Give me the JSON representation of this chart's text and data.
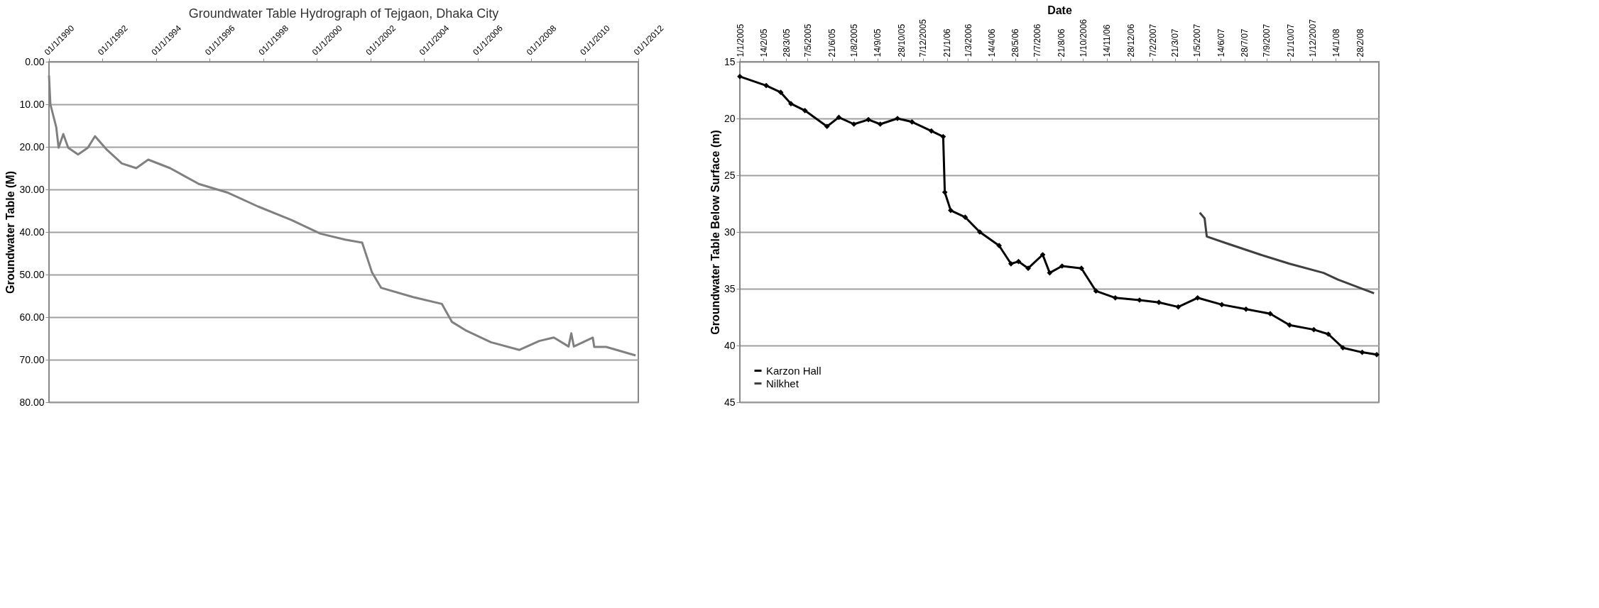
{
  "chart_data": [
    {
      "type": "line",
      "title": "Groundwater Table Hydrograph of Tejgaon, Dhaka City",
      "ylabel": "Groundwater Table (M)",
      "xlim": [
        "1990-01-01",
        "2012-01-01"
      ],
      "xticks": [
        {
          "value": "1990-01-01",
          "label": "01/1/1990"
        },
        {
          "value": "1992-01-01",
          "label": "01/1/1992"
        },
        {
          "value": "1994-01-01",
          "label": "01/1/1994"
        },
        {
          "value": "1996-01-01",
          "label": "01/1/1996"
        },
        {
          "value": "1998-01-01",
          "label": "01/1/1998"
        },
        {
          "value": "2000-01-01",
          "label": "01/1/2000"
        },
        {
          "value": "2002-01-01",
          "label": "01/1/2002"
        },
        {
          "value": "2004-01-01",
          "label": "01/1/2004"
        },
        {
          "value": "2006-01-01",
          "label": "01/1/2006"
        },
        {
          "value": "2008-01-01",
          "label": "01/1/2008"
        },
        {
          "value": "2010-01-01",
          "label": "01/1/2010"
        },
        {
          "value": "2012-01-01",
          "label": "01/1/2012"
        }
      ],
      "ylim": [
        80,
        0
      ],
      "yticks": [
        {
          "value": 0,
          "label": "0.00"
        },
        {
          "value": 10,
          "label": "10.00"
        },
        {
          "value": 20,
          "label": "20.00"
        },
        {
          "value": 30,
          "label": "30.00"
        },
        {
          "value": 40,
          "label": "40.00"
        },
        {
          "value": 50,
          "label": "50.00"
        },
        {
          "value": 60,
          "label": "60.00"
        },
        {
          "value": 70,
          "label": "70.00"
        },
        {
          "value": 80,
          "label": "80.00"
        }
      ],
      "grid": "y",
      "series": [
        {
          "color": "#808080",
          "x": [
            "1990-01-01",
            "1990-01-20",
            "1990-04-10",
            "1990-05-12",
            "1990-07-15",
            "1990-09-20",
            "1991-02-01",
            "1991-06-15",
            "1991-09-20",
            "1992-03-01",
            "1992-09-20",
            "1993-04-05",
            "1993-09-15",
            "1994-07-10",
            "1995-08-05",
            "1996-09-10",
            "1997-10-20",
            "1999-01-20",
            "2000-02-20",
            "2001-01-20",
            "2001-09-10",
            "2002-01-20",
            "2002-05-25",
            "2003-08-05",
            "2004-09-01",
            "2005-01-15",
            "2005-08-01",
            "2006-07-01",
            "2007-07-25",
            "2008-04-20",
            "2008-11-05",
            "2009-05-25",
            "2009-07-01",
            "2009-08-05",
            "2010-04-20",
            "2010-05-10",
            "2010-10-20",
            "2011-11-25"
          ],
          "values": [
            3.2,
            10,
            15.4,
            20.2,
            17,
            20.2,
            21.8,
            20.2,
            17.5,
            20.7,
            23.9,
            25,
            23,
            25,
            28.7,
            30.8,
            34,
            37.2,
            40.4,
            41.8,
            42.5,
            49.4,
            53.1,
            55.3,
            56.9,
            61.1,
            63.2,
            65.9,
            67.7,
            65.6,
            64.8,
            66.9,
            63.8,
            66.9,
            64.8,
            67,
            67,
            69
          ]
        }
      ]
    },
    {
      "type": "line",
      "xlabel": "Date",
      "ylabel": "Groundwater Table Below Surface (m)",
      "xlim": [
        "2005-01-01",
        "2008-04-03"
      ],
      "xticks": [
        {
          "value": "2005-01-01",
          "label": "1/1/2005"
        },
        {
          "value": "2005-02-14",
          "label": "14/2/05"
        },
        {
          "value": "2005-03-28",
          "label": "28/3/05"
        },
        {
          "value": "2005-05-07",
          "label": "7/5/2005"
        },
        {
          "value": "2005-06-21",
          "label": "21/6/05"
        },
        {
          "value": "2005-08-01",
          "label": "1/8/2005"
        },
        {
          "value": "2005-09-14",
          "label": "14/9/05"
        },
        {
          "value": "2005-10-28",
          "label": "28/10/05"
        },
        {
          "value": "2005-12-07",
          "label": "7/12/2005"
        },
        {
          "value": "2006-01-21",
          "label": "21/1/06"
        },
        {
          "value": "2006-03-01",
          "label": "1/3/2006"
        },
        {
          "value": "2006-04-14",
          "label": "14/4/06"
        },
        {
          "value": "2006-05-28",
          "label": "28/5/06"
        },
        {
          "value": "2006-07-07",
          "label": "7/7/2006"
        },
        {
          "value": "2006-08-21",
          "label": "21/8/06"
        },
        {
          "value": "2006-10-01",
          "label": "1/10/2006"
        },
        {
          "value": "2006-11-14",
          "label": "14/11/06"
        },
        {
          "value": "2006-12-28",
          "label": "28/12/06"
        },
        {
          "value": "2007-02-07",
          "label": "7/2/2007"
        },
        {
          "value": "2007-03-21",
          "label": "21/3/07"
        },
        {
          "value": "2007-05-01",
          "label": "1/5/2007"
        },
        {
          "value": "2007-06-14",
          "label": "14/6/07"
        },
        {
          "value": "2007-07-28",
          "label": "28/7/07"
        },
        {
          "value": "2007-09-07",
          "label": "7/9/2007"
        },
        {
          "value": "2007-10-21",
          "label": "21/10/07"
        },
        {
          "value": "2007-12-01",
          "label": "1/12/2007"
        },
        {
          "value": "2008-01-14",
          "label": "14/1/08"
        },
        {
          "value": "2008-02-28",
          "label": "28/2/08"
        }
      ],
      "ylim": [
        45,
        15
      ],
      "yticks": [
        15,
        20,
        25,
        30,
        35,
        40,
        45
      ],
      "grid": "y",
      "legend": "bottom left",
      "series": [
        {
          "name": "Karzon Hall",
          "color": "#000000",
          "marker": "diamond",
          "x": [
            "2005-01-01",
            "2005-02-19",
            "2005-03-18",
            "2005-04-06",
            "2005-05-02",
            "2005-06-12",
            "2005-07-04",
            "2005-08-01",
            "2005-08-28",
            "2005-09-19",
            "2005-10-21",
            "2005-11-17",
            "2005-12-23",
            "2006-01-14",
            "2006-01-17",
            "2006-01-28",
            "2006-02-24",
            "2006-03-23",
            "2006-04-28",
            "2006-05-20",
            "2006-06-03",
            "2006-06-21",
            "2006-07-18",
            "2006-07-31",
            "2006-08-23",
            "2006-09-28",
            "2006-10-25",
            "2006-11-30",
            "2007-01-14",
            "2007-02-19",
            "2007-03-27",
            "2007-05-02",
            "2007-06-16",
            "2007-07-31",
            "2007-09-14",
            "2007-10-20",
            "2007-12-04",
            "2007-12-31",
            "2008-01-27",
            "2008-03-03",
            "2008-03-30"
          ],
          "values": [
            16.3,
            17.1,
            17.7,
            18.7,
            19.3,
            20.7,
            19.9,
            20.5,
            20.1,
            20.5,
            20.0,
            20.3,
            21.1,
            21.6,
            26.5,
            28.1,
            28.7,
            30.0,
            31.2,
            32.8,
            32.6,
            33.2,
            32.0,
            33.6,
            33.0,
            33.2,
            35.2,
            35.8,
            36.0,
            36.2,
            36.6,
            35.8,
            36.4,
            36.8,
            37.2,
            38.2,
            38.6,
            39.0,
            40.2,
            40.6,
            40.8
          ]
        },
        {
          "name": "Nilkhet",
          "color": "#404040",
          "x": [
            "2007-05-06",
            "2007-05-15",
            "2007-05-19",
            "2007-06-25",
            "2007-08-27",
            "2007-10-20",
            "2007-12-22",
            "2008-01-18",
            "2008-03-25"
          ],
          "values": [
            28.3,
            28.8,
            30.4,
            31.0,
            32.0,
            32.8,
            33.6,
            34.2,
            35.4
          ]
        }
      ]
    }
  ]
}
